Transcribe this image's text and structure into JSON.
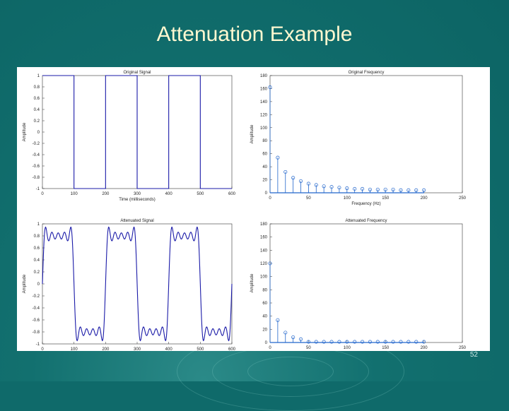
{
  "slide": {
    "title": "Attenuation Example",
    "page_number": "52",
    "colors": {
      "background": "#0f6a6a",
      "title": "#fff8d0",
      "series": "#1a1aa8",
      "markers": "#2266cc"
    }
  },
  "chart_data": [
    {
      "type": "line",
      "title": "Original Signal",
      "xlabel": "Time (milliseconds)",
      "ylabel": "Amplitude",
      "xlim": [
        0,
        300
      ],
      "ylim": [
        -1,
        1
      ],
      "xticks": [
        0,
        50,
        100,
        150,
        200,
        250,
        300
      ],
      "xticklabels": [
        "0",
        "100",
        "200",
        "300",
        "400",
        "500",
        "600"
      ],
      "yticks": [
        -1,
        -0.8,
        -0.6,
        -0.4,
        -0.2,
        0,
        0.2,
        0.4,
        0.6,
        0.8,
        1
      ],
      "yticklabels": [
        "-1",
        "-0.8",
        "-0.6",
        "-0.4",
        "-0.2",
        "0",
        "0.2",
        "0.4",
        "0.6",
        "0.8",
        "1"
      ],
      "series": [
        {
          "x": [
            0,
            50,
            50,
            100,
            100,
            150,
            150,
            200,
            200,
            250,
            250,
            300
          ],
          "y": [
            1,
            1,
            -1,
            -1,
            1,
            1,
            -1,
            -1,
            1,
            1,
            -1,
            -1
          ]
        }
      ]
    },
    {
      "type": "scatter",
      "title": "Original Frequency",
      "xlabel": "Frequency (Hz)",
      "ylabel": "Amplitude",
      "xlim": [
        0,
        250
      ],
      "ylim": [
        0,
        180
      ],
      "xticks": [
        0,
        50,
        100,
        150,
        200,
        250
      ],
      "xticklabels": [
        "0",
        "50",
        "100",
        "150",
        "200",
        "250"
      ],
      "yticks": [
        0,
        20,
        40,
        60,
        80,
        100,
        120,
        140,
        160,
        180
      ],
      "yticklabels": [
        "0",
        "20",
        "40",
        "60",
        "80",
        "100",
        "120",
        "140",
        "160",
        "180"
      ],
      "series": [
        {
          "x": [
            0,
            10,
            20,
            30,
            40,
            50,
            60,
            70,
            80,
            90,
            100,
            110,
            120,
            130,
            140,
            150,
            160,
            170,
            180,
            190,
            200
          ],
          "y": [
            162,
            54,
            32,
            23,
            18,
            14,
            12,
            10,
            9,
            8,
            7,
            6,
            6,
            5,
            5,
            5,
            5,
            4,
            4,
            4,
            4
          ]
        }
      ]
    },
    {
      "type": "line",
      "title": "Attenuated Signal",
      "xlabel": "Time (milliseconds)",
      "ylabel": "Amplitude",
      "xlim": [
        0,
        300
      ],
      "ylim": [
        -1,
        1
      ],
      "xticks": [
        0,
        50,
        100,
        150,
        200,
        250,
        300
      ],
      "xticklabels": [
        "0",
        "100",
        "200",
        "300",
        "400",
        "500",
        "600"
      ],
      "yticks": [
        -1,
        -0.8,
        -0.6,
        -0.4,
        -0.2,
        0,
        0.2,
        0.4,
        0.6,
        0.8,
        1
      ],
      "yticklabels": [
        "-1",
        "-0.8",
        "-0.6",
        "-0.4",
        "-0.2",
        "0",
        "0.2",
        "0.4",
        "0.6",
        "0.8",
        "1"
      ],
      "harmonics": [
        1,
        3,
        5,
        7,
        9
      ],
      "period_ms": 100,
      "amplitude_scale": 0.8,
      "series": [
        {
          "name": ""
        }
      ]
    },
    {
      "type": "scatter",
      "title": "Attenuated Frequency",
      "xlabel": "Frequency (Hz)",
      "ylabel": "Amplitude",
      "xlim": [
        0,
        250
      ],
      "ylim": [
        0,
        180
      ],
      "xticks": [
        0,
        50,
        100,
        150,
        200,
        250
      ],
      "xticklabels": [
        "0",
        "50",
        "100",
        "150",
        "200",
        "250"
      ],
      "yticks": [
        0,
        20,
        40,
        60,
        80,
        100,
        120,
        140,
        160,
        180
      ],
      "yticklabels": [
        "0",
        "20",
        "40",
        "60",
        "80",
        "100",
        "120",
        "140",
        "160",
        "180"
      ],
      "series": [
        {
          "x": [
            0,
            10,
            20,
            30,
            40,
            50,
            60,
            70,
            80,
            90,
            100,
            110,
            120,
            130,
            140,
            150,
            160,
            170,
            180,
            190,
            200
          ],
          "y": [
            120,
            34,
            15,
            8,
            5,
            1,
            1,
            1,
            1,
            1,
            1,
            1,
            1,
            1,
            1,
            1,
            1,
            1,
            1,
            1,
            1
          ]
        }
      ]
    }
  ]
}
